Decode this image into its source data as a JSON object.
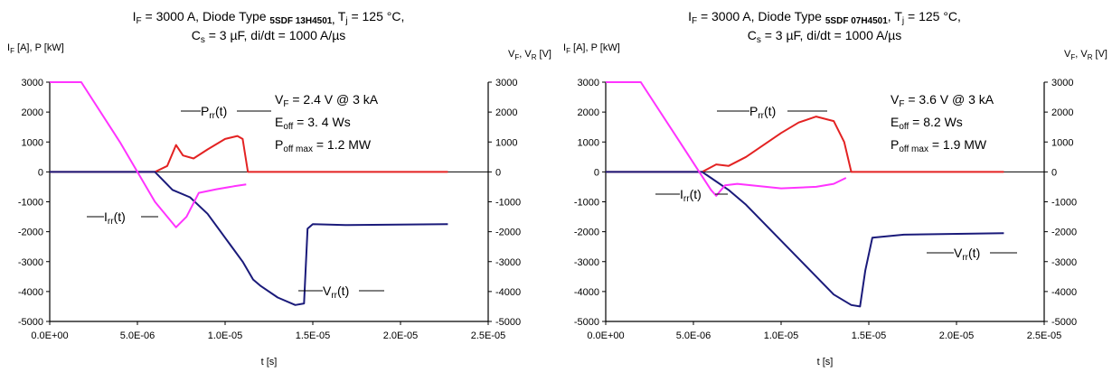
{
  "chart_data": [
    {
      "type": "line",
      "title_line1": [
        "I",
        "F",
        " = 3000 A, Diode Type ",
        "5SDF 13H4501,",
        " T",
        "j",
        " = 125 °C,"
      ],
      "title_line2": [
        "C",
        "s",
        " = 3 µF, di/dt = 1000 A/µs"
      ],
      "ylabel_left": [
        "I",
        "F",
        " [A], P [kW]"
      ],
      "ylabel_right": [
        "V",
        "F",
        ", V",
        "R",
        " [V]"
      ],
      "xlabel": "t [s]",
      "xlim": [
        0,
        2.5e-05
      ],
      "ylim": [
        -5000,
        3000
      ],
      "x_ticks": [
        "0.0E+00",
        "5.0E-06",
        "1.0E-05",
        "1.5E-05",
        "2.0E-05",
        "2.5E-05"
      ],
      "y_ticks": [
        "3000",
        "2000",
        "1000",
        "0",
        "-1000",
        "-2000",
        "-3000",
        "-4000",
        "-5000"
      ],
      "y_ticks_right": [
        "3000",
        "2000",
        "1000",
        "0",
        "-1000",
        "-2000",
        "-3000",
        "-4000",
        "-5000"
      ],
      "annotations": {
        "vf": [
          "V",
          "F",
          " = 2.4 V @ 3 kA"
        ],
        "eoff": [
          "E",
          "off",
          " = 3. 4 Ws"
        ],
        "poff": [
          "P",
          "off max",
          " = 1.2 MW"
        ],
        "prr": [
          "P",
          "rr",
          "(t)"
        ],
        "irr": [
          "I",
          "rr",
          "(t)"
        ],
        "vrr": [
          "V",
          "rr",
          "(t)"
        ]
      },
      "series": [
        {
          "label": "Irr(t)",
          "color": "#ff33ff",
          "x": [
            0,
            1.8e-06,
            4e-06,
            5e-06,
            6e-06,
            7.2e-06,
            7.8e-06,
            8.5e-06,
            9.5e-06,
            1.05e-05,
            1.12e-05
          ],
          "y": [
            3000,
            3000,
            1000,
            0,
            -1000,
            -1850,
            -1500,
            -700,
            -580,
            -480,
            -420
          ]
        },
        {
          "label": "Prr(t)",
          "color": "#e32222",
          "x": [
            0,
            6e-06,
            6.7e-06,
            7.2e-06,
            7.6e-06,
            8.2e-06,
            9e-06,
            1e-05,
            1.07e-05,
            1.1e-05,
            1.13e-05,
            1.5e-05,
            2.27e-05
          ],
          "y": [
            0,
            0,
            200,
            900,
            550,
            450,
            750,
            1100,
            1200,
            1100,
            0,
            0,
            0
          ]
        },
        {
          "label": "Vrr(t)",
          "color": "#1a1a7a",
          "x": [
            0,
            6e-06,
            7e-06,
            8e-06,
            9e-06,
            1e-05,
            1.1e-05,
            1.16e-05,
            1.2e-05,
            1.3e-05,
            1.4e-05,
            1.45e-05,
            1.47e-05,
            1.5e-05,
            1.7e-05,
            2.27e-05
          ],
          "y": [
            0,
            0,
            -600,
            -850,
            -1400,
            -2200,
            -3000,
            -3600,
            -3800,
            -4200,
            -4450,
            -4400,
            -1900,
            -1750,
            -1780,
            -1750
          ]
        }
      ],
      "grid": false
    },
    {
      "type": "line",
      "title_line1": [
        "I",
        "F",
        " = 3000 A, Diode Type ",
        "5SDF 07H4501",
        ", T",
        "j",
        " = 125 °C,"
      ],
      "title_line2": [
        "C",
        "s",
        " = 3 µF, di/dt = 1000 A/µs"
      ],
      "ylabel_left": [
        "I",
        "F",
        " [A], P [kW]"
      ],
      "ylabel_right": [
        "V",
        "F",
        ", V",
        "R",
        " [V]"
      ],
      "xlabel": "t [s]",
      "xlim": [
        0,
        2.5e-05
      ],
      "ylim": [
        -5000,
        3000
      ],
      "x_ticks": [
        "0.0E+00",
        "5.0E-06",
        "1.0E-05",
        "1.5E-05",
        "2.0E-05",
        "2.5E-05"
      ],
      "y_ticks": [
        "3000",
        "2000",
        "1000",
        "0",
        "-1000",
        "-2000",
        "-3000",
        "-4000",
        "-5000"
      ],
      "y_ticks_right": [
        "3000",
        "2000",
        "1000",
        "0",
        "-1000",
        "-2000",
        "-3000",
        "-4000",
        "-5000"
      ],
      "annotations": {
        "vf": [
          "V",
          "F",
          " = 3.6 V @ 3 kA"
        ],
        "eoff": [
          "E",
          "off",
          " = 8.2 Ws"
        ],
        "poff": [
          "P",
          "off max",
          " = 1.9 MW"
        ],
        "prr": [
          "P",
          "rr",
          "(t)"
        ],
        "irr": [
          "I",
          "rr",
          "(t)"
        ],
        "vrr": [
          "V",
          "rr",
          "(t)"
        ]
      },
      "series": [
        {
          "label": "Irr(t)",
          "color": "#ff33ff",
          "x": [
            0,
            2e-06,
            4e-06,
            5e-06,
            6e-06,
            6.3e-06,
            6.8e-06,
            7.5e-06,
            1e-05,
            1.2e-05,
            1.3e-05,
            1.37e-05
          ],
          "y": [
            3000,
            3000,
            1200,
            300,
            -600,
            -800,
            -450,
            -400,
            -550,
            -500,
            -400,
            -200
          ]
        },
        {
          "label": "Prr(t)",
          "color": "#e32222",
          "x": [
            0,
            5.5e-06,
            6.3e-06,
            7e-06,
            8e-06,
            9e-06,
            1e-05,
            1.1e-05,
            1.2e-05,
            1.3e-05,
            1.36e-05,
            1.4e-05,
            1.6e-05,
            2.27e-05
          ],
          "y": [
            0,
            0,
            250,
            200,
            500,
            900,
            1300,
            1650,
            1850,
            1700,
            1000,
            0,
            0,
            0
          ]
        },
        {
          "label": "Vrr(t)",
          "color": "#1a1a7a",
          "x": [
            0,
            5.5e-06,
            6e-06,
            7e-06,
            8e-06,
            9e-06,
            1e-05,
            1.1e-05,
            1.2e-05,
            1.3e-05,
            1.4e-05,
            1.45e-05,
            1.48e-05,
            1.52e-05,
            1.7e-05,
            2.27e-05
          ],
          "y": [
            0,
            0,
            -200,
            -600,
            -1100,
            -1700,
            -2300,
            -2900,
            -3500,
            -4100,
            -4450,
            -4500,
            -3300,
            -2200,
            -2100,
            -2050
          ]
        }
      ],
      "grid": false
    }
  ]
}
